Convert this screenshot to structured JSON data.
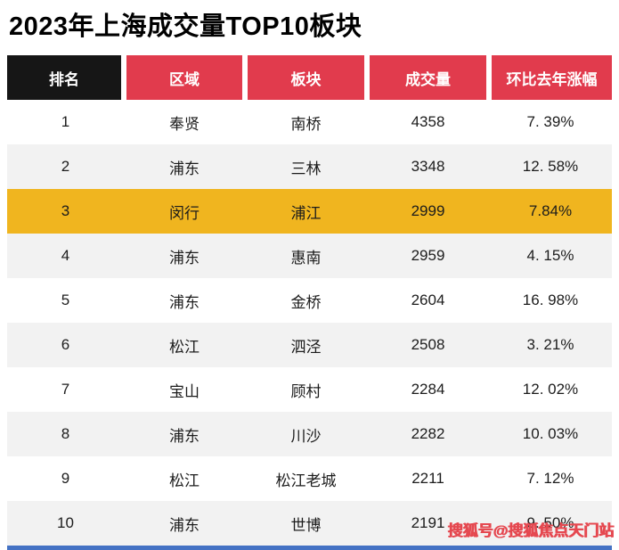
{
  "page": {
    "title": "2023年上海成交量TOP10板块",
    "watermark": "搜狐号@搜狐焦点天门站"
  },
  "table": {
    "columns": [
      "排名",
      "区域",
      "板块",
      "成交量",
      "环比去年涨幅"
    ],
    "rows": [
      {
        "rank": "1",
        "region": "奉贤",
        "block": "南桥",
        "volume": "4358",
        "change": "7. 39%",
        "highlight": false
      },
      {
        "rank": "2",
        "region": "浦东",
        "block": "三林",
        "volume": "3348",
        "change": "12. 58%",
        "highlight": false
      },
      {
        "rank": "3",
        "region": "闵行",
        "block": "浦江",
        "volume": "2999",
        "change": "7.84%",
        "highlight": true
      },
      {
        "rank": "4",
        "region": "浦东",
        "block": "惠南",
        "volume": "2959",
        "change": "4. 15%",
        "highlight": false
      },
      {
        "rank": "5",
        "region": "浦东",
        "block": "金桥",
        "volume": "2604",
        "change": "16. 98%",
        "highlight": false
      },
      {
        "rank": "6",
        "region": "松江",
        "block": "泗泾",
        "volume": "2508",
        "change": "3. 21%",
        "highlight": false
      },
      {
        "rank": "7",
        "region": "宝山",
        "block": "顾村",
        "volume": "2284",
        "change": "12. 02%",
        "highlight": false
      },
      {
        "rank": "8",
        "region": "浦东",
        "block": "川沙",
        "volume": "2282",
        "change": "10. 03%",
        "highlight": false
      },
      {
        "rank": "9",
        "region": "松江",
        "block": "松江老城",
        "volume": "2211",
        "change": "7. 12%",
        "highlight": false
      },
      {
        "rank": "10",
        "region": "浦东",
        "block": "世博",
        "volume": "2191",
        "change": "9. 50%",
        "highlight": false
      }
    ]
  },
  "colors": {
    "header_rank_bg": "#161616",
    "header_red_bg": "#E13B4D",
    "row_alt_bg": "#F2F2F2",
    "highlight_bg": "#F0B51F",
    "watermark_color": "#E54850",
    "bottom_bar": "#4472C4"
  },
  "chart_data": {
    "type": "table",
    "title": "2023年上海成交量TOP10板块",
    "columns": [
      "排名",
      "区域",
      "板块",
      "成交量",
      "环比去年涨幅"
    ],
    "rows": [
      [
        "1",
        "奉贤",
        "南桥",
        4358,
        "7.39%"
      ],
      [
        "2",
        "浦东",
        "三林",
        3348,
        "12.58%"
      ],
      [
        "3",
        "闵行",
        "浦江",
        2999,
        "7.84%"
      ],
      [
        "4",
        "浦东",
        "惠南",
        2959,
        "4.15%"
      ],
      [
        "5",
        "浦东",
        "金桥",
        2604,
        "16.98%"
      ],
      [
        "6",
        "松江",
        "泗泾",
        2508,
        "3.21%"
      ],
      [
        "7",
        "宝山",
        "顾村",
        2284,
        "12.02%"
      ],
      [
        "8",
        "浦东",
        "川沙",
        2282,
        "10.03%"
      ],
      [
        "9",
        "松江",
        "松江老城",
        2211,
        "7.12%"
      ],
      [
        "10",
        "浦东",
        "世博",
        2191,
        "9.50%"
      ]
    ],
    "highlighted_rank": 3,
    "layout": {
      "header_rank_bg": "black",
      "header_other_bg": "red",
      "alternating_rows": true,
      "highlight_row_color": "gold"
    }
  }
}
